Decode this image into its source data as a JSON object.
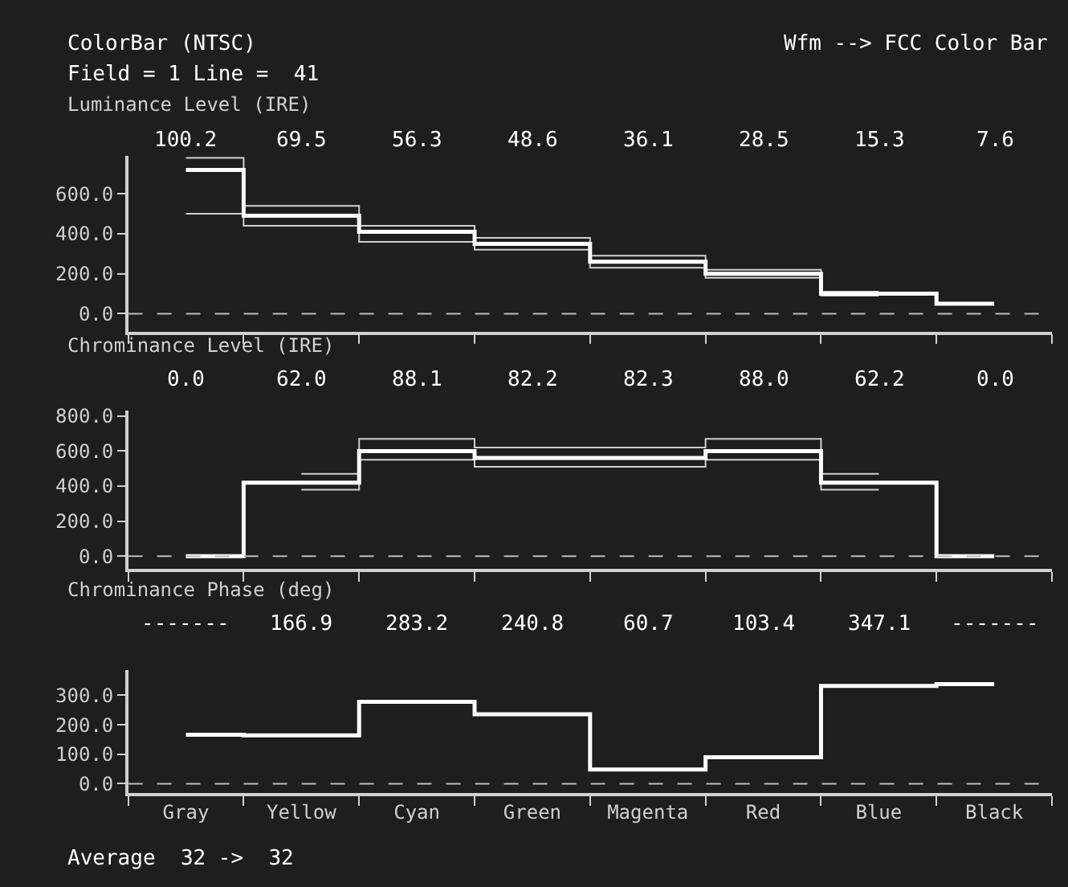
{
  "chart_data": [
    {
      "type": "step",
      "title": "Luminance Level (IRE)",
      "annotations": [
        "ColorBar (NTSC)",
        "Field = 1 Line =  41",
        "Wfm --> FCC Color Bar"
      ],
      "categories": [
        null,
        null,
        null,
        null,
        null,
        null,
        null,
        null
      ],
      "series": [
        {
          "color": "#ffffff",
          "values": [
            720,
            490,
            410,
            350,
            260,
            200,
            100,
            50
          ]
        },
        {
          "color": "#cfcfcf",
          "values": [
            780,
            540,
            440,
            380,
            290,
            220,
            110,
            null
          ]
        },
        {
          "color": "#cfcfcf",
          "values": [
            500,
            440,
            360,
            320,
            230,
            180,
            90,
            null
          ]
        }
      ],
      "value_labels": [
        "100.2",
        "69.5",
        "56.3",
        "48.6",
        "36.1",
        "28.5",
        "15.3",
        "7.6"
      ],
      "ylim": [
        -90,
        790
      ],
      "yticks": [
        {
          "value": 0,
          "label": "0.0"
        },
        {
          "value": 200,
          "label": "200.0"
        },
        {
          "value": 400,
          "label": "400.0"
        },
        {
          "value": 600,
          "label": "600.0"
        }
      ],
      "ref_lines": [
        {
          "axis": "y",
          "value": 0,
          "line_style": "dashed",
          "color": "#bbbbbb"
        }
      ],
      "tick_labels": "y",
      "grid": false
    },
    {
      "type": "step",
      "title": "Chrominance Level (IRE)",
      "categories": [
        null,
        null,
        null,
        null,
        null,
        null,
        null,
        null
      ],
      "series": [
        {
          "color": "#ffffff",
          "values": [
            0,
            420,
            600,
            560,
            560,
            600,
            420,
            0
          ]
        },
        {
          "color": "#cfcfcf",
          "values": [
            null,
            470,
            670,
            620,
            620,
            670,
            470,
            null
          ]
        },
        {
          "color": "#cfcfcf",
          "values": [
            null,
            380,
            550,
            510,
            510,
            550,
            380,
            null
          ]
        }
      ],
      "value_labels": [
        "0.0",
        "62.0",
        "88.1",
        "82.2",
        "82.3",
        "88.0",
        "62.2",
        "0.0"
      ],
      "ylim": [
        -73,
        830
      ],
      "yticks": [
        {
          "value": 0,
          "label": "0.0"
        },
        {
          "value": 200,
          "label": "200.0"
        },
        {
          "value": 400,
          "label": "400.0"
        },
        {
          "value": 600,
          "label": "600.0"
        },
        {
          "value": 800,
          "label": "800.0"
        }
      ],
      "ref_lines": [
        {
          "axis": "y",
          "value": 0,
          "line_style": "dashed",
          "color": "#bbbbbb"
        }
      ],
      "tick_labels": "y",
      "grid": false
    },
    {
      "type": "step",
      "title": "Chrominance Phase (deg)",
      "annotations": [
        "Average  32 ->  32"
      ],
      "categories": [
        "Gray",
        "Yellow",
        "Cyan",
        "Green",
        "Magenta",
        "Red",
        "Blue",
        "Black"
      ],
      "series": [
        {
          "color": "#ffffff",
          "values": [
            166,
            164,
            278,
            236,
            48,
            90,
            332,
            338
          ]
        }
      ],
      "value_labels": [
        "-------",
        "166.9",
        "283.2",
        "240.8",
        "60.7",
        "103.4",
        "347.1",
        "-------"
      ],
      "ylim": [
        -32,
        386
      ],
      "yticks": [
        {
          "value": 0,
          "label": "0.0"
        },
        {
          "value": 100,
          "label": "100.0"
        },
        {
          "value": 200,
          "label": "200.0"
        },
        {
          "value": 300,
          "label": "300.0"
        }
      ],
      "ref_lines": [
        {
          "axis": "y",
          "value": 0,
          "line_style": "dashed",
          "color": "#bbbbbb"
        }
      ],
      "grid": false
    }
  ]
}
